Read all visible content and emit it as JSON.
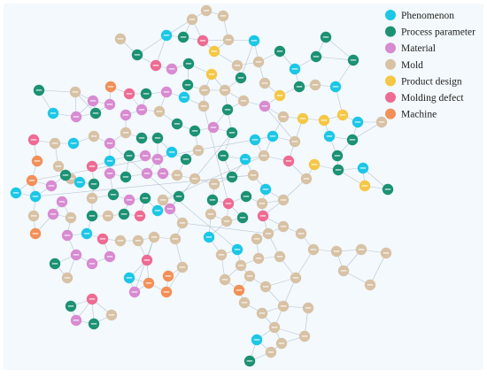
{
  "colors": {
    "background": "#f3f9fd",
    "edge": "#b9c4cf",
    "Phenomenon": "#1cc7e6",
    "Process parameter": "#1c9173",
    "Material": "#d88bd1",
    "Mold": "#d8c2a5",
    "Product design": "#f5c745",
    "Molding defect": "#ee6b93",
    "Machine": "#f29058"
  },
  "legend": [
    {
      "label": "Phenomenon",
      "key": "Phenomenon"
    },
    {
      "label": "Process parameter",
      "key": "Process parameter"
    },
    {
      "label": "Material",
      "key": "Material"
    },
    {
      "label": "Mold",
      "key": "Mold"
    },
    {
      "label": "Product design",
      "key": "Product design"
    },
    {
      "label": "Molding defect",
      "key": "Molding defect"
    },
    {
      "label": "Machine",
      "key": "Machine"
    }
  ]
}
